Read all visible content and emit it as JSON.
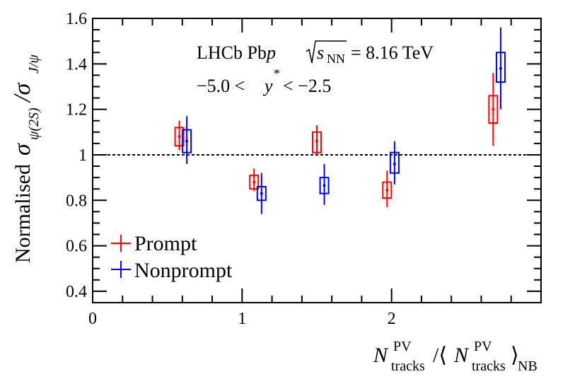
{
  "chart_data": {
    "type": "scatter",
    "title": "",
    "annotation": {
      "experiment": "LHCb Pb",
      "particle": "p",
      "sqrt": "s",
      "sqrt_sub": "NN",
      "energy": "= 8.16 TeV",
      "rapidity_left": "−5.0 <",
      "rapidity_var": "y",
      "rapidity_sup": "*",
      "rapidity_right": "< −2.5"
    },
    "xlabel": {
      "n": "N",
      "sup": "PV",
      "sub": "tracks",
      "slash": "/⟨",
      "n2": "N",
      "sup2": "PV",
      "sub2": "tracks",
      "close": "⟩",
      "sub3": "NB"
    },
    "ylabel": {
      "prefix": "Normalised",
      "sigma": "σ",
      "num_sub": "ψ(2S)",
      "slash": "/σ",
      "den_sub": "J/ψ"
    },
    "xlim": [
      0,
      3.0
    ],
    "ylim": [
      0.35,
      1.6
    ],
    "xticks": [
      0,
      1,
      2
    ],
    "xtick_labels": [
      "0",
      "1",
      "2"
    ],
    "yticks": [
      0.4,
      0.6,
      0.8,
      1.0,
      1.2,
      1.4,
      1.6
    ],
    "ytick_labels": [
      "0.4",
      "0.6",
      "0.8",
      "1",
      "1.2",
      "1.4",
      "1.6"
    ],
    "reference_line": 1.0,
    "legend_position": "bottom-left",
    "series": [
      {
        "name": "Prompt",
        "color": "#ff0000",
        "points": [
          {
            "x": 0.58,
            "y": 1.08,
            "stat_lo": 1.02,
            "stat_hi": 1.15,
            "syst_lo": 1.04,
            "syst_hi": 1.12
          },
          {
            "x": 1.08,
            "y": 0.88,
            "stat_lo": 0.84,
            "stat_hi": 0.94,
            "syst_lo": 0.85,
            "syst_hi": 0.91
          },
          {
            "x": 1.5,
            "y": 1.06,
            "stat_lo": 1.0,
            "stat_hi": 1.13,
            "syst_lo": 1.01,
            "syst_hi": 1.1
          },
          {
            "x": 1.97,
            "y": 0.845,
            "stat_lo": 0.77,
            "stat_hi": 0.93,
            "syst_lo": 0.81,
            "syst_hi": 0.88
          },
          {
            "x": 2.68,
            "y": 1.2,
            "stat_lo": 1.04,
            "stat_hi": 1.36,
            "syst_lo": 1.14,
            "syst_hi": 1.26
          }
        ]
      },
      {
        "name": "Nonprompt",
        "color": "#0000ff",
        "points": [
          {
            "x": 0.63,
            "y": 1.06,
            "stat_lo": 0.96,
            "stat_hi": 1.17,
            "syst_lo": 1.01,
            "syst_hi": 1.11
          },
          {
            "x": 1.13,
            "y": 0.83,
            "stat_lo": 0.74,
            "stat_hi": 0.92,
            "syst_lo": 0.8,
            "syst_hi": 0.86
          },
          {
            "x": 1.55,
            "y": 0.865,
            "stat_lo": 0.78,
            "stat_hi": 0.96,
            "syst_lo": 0.83,
            "syst_hi": 0.9
          },
          {
            "x": 2.02,
            "y": 0.96,
            "stat_lo": 0.87,
            "stat_hi": 1.06,
            "syst_lo": 0.92,
            "syst_hi": 1.01
          },
          {
            "x": 2.73,
            "y": 1.38,
            "stat_lo": 1.2,
            "stat_hi": 1.56,
            "syst_lo": 1.32,
            "syst_hi": 1.45
          }
        ]
      }
    ]
  }
}
